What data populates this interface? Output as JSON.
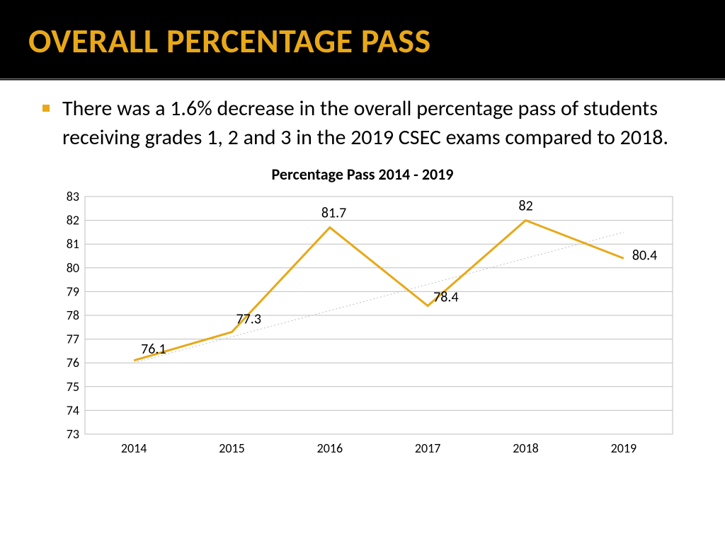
{
  "header": {
    "title": "OVERALL PERCENTAGE PASS"
  },
  "bullet": {
    "text": "There was a 1.6% decrease in the overall percentage pass of students receiving grades 1, 2 and 3 in the 2019 CSEC exams compared to 2018."
  },
  "chart": {
    "type": "line",
    "title": "Percentage Pass 2014 - 2019",
    "categories": [
      "2014",
      "2015",
      "2016",
      "2017",
      "2018",
      "2019"
    ],
    "values": [
      76.1,
      77.3,
      81.7,
      78.4,
      82,
      80.4
    ],
    "data_labels": [
      "76.1",
      "77.3",
      "81.7",
      "78.4",
      "82",
      "80.4"
    ],
    "line_color": "#e8a817",
    "line_width": 3,
    "ylim": [
      73,
      83
    ],
    "yticks": [
      73,
      74,
      75,
      76,
      77,
      78,
      79,
      80,
      81,
      82,
      83
    ],
    "grid_color": "#bfbfbf",
    "background_color": "#ffffff",
    "trend": {
      "start": 76.0,
      "end": 81.5,
      "color": "#c0c0c0"
    },
    "label_fontsize": 20,
    "tick_fontsize": 18
  }
}
